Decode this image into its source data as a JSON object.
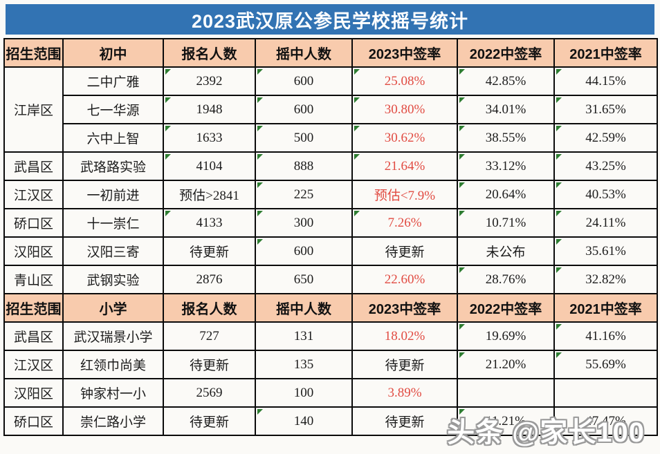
{
  "page": {
    "title": "2023武汉原公参民学校摇号统计",
    "watermark": "头条 @家长100"
  },
  "colors": {
    "title_bg": "#3273b3",
    "header_bg": "#f8cbad",
    "red": "#e14b42",
    "marker_green": "#2e7d32",
    "border": "#0a0a0a"
  },
  "table": {
    "sections": [
      {
        "header": [
          "招生范围",
          "初中",
          "报名人数",
          "摇中人数",
          "2023中签率",
          "2022中签率",
          "2021中签率"
        ],
        "groups": [
          {
            "district": "江岸区",
            "rows": [
              {
                "school": "二中广雅",
                "values": [
                  {
                    "text": "2392",
                    "mark": true
                  },
                  {
                    "text": "600",
                    "mark": true
                  },
                  {
                    "text": "25.08%",
                    "mark": true,
                    "red": true
                  },
                  {
                    "text": "42.85%",
                    "mark": true
                  },
                  {
                    "text": "44.15%",
                    "mark": true
                  }
                ]
              },
              {
                "school": "七一华源",
                "values": [
                  {
                    "text": "1948",
                    "mark": true
                  },
                  {
                    "text": "600",
                    "mark": true
                  },
                  {
                    "text": "30.80%",
                    "mark": true,
                    "red": true
                  },
                  {
                    "text": "34.01%",
                    "mark": true
                  },
                  {
                    "text": "31.65%",
                    "mark": true
                  }
                ]
              },
              {
                "school": "六中上智",
                "values": [
                  {
                    "text": "1633",
                    "mark": true
                  },
                  {
                    "text": "500",
                    "mark": true
                  },
                  {
                    "text": "30.62%",
                    "mark": true,
                    "red": true
                  },
                  {
                    "text": "38.55%",
                    "mark": true
                  },
                  {
                    "text": "42.59%",
                    "mark": true
                  }
                ]
              }
            ]
          },
          {
            "district": "武昌区",
            "rows": [
              {
                "school": "武珞路实验",
                "values": [
                  {
                    "text": "4104",
                    "mark": true
                  },
                  {
                    "text": "888",
                    "mark": true
                  },
                  {
                    "text": "21.64%",
                    "mark": true,
                    "red": true
                  },
                  {
                    "text": "33.12%",
                    "mark": true
                  },
                  {
                    "text": "43.25%",
                    "mark": true
                  }
                ]
              }
            ]
          },
          {
            "district": "江汉区",
            "rows": [
              {
                "school": "一初前进",
                "values": [
                  {
                    "text": "预估>2841"
                  },
                  {
                    "text": "225",
                    "mark": true
                  },
                  {
                    "text": "预估<7.9%",
                    "red": true
                  },
                  {
                    "text": "20.64%",
                    "mark": true
                  },
                  {
                    "text": "40.53%",
                    "mark": true
                  }
                ]
              }
            ]
          },
          {
            "district": "硚口区",
            "rows": [
              {
                "school": "十一崇仁",
                "values": [
                  {
                    "text": "4133",
                    "mark": true
                  },
                  {
                    "text": "300",
                    "mark": true
                  },
                  {
                    "text": "7.26%",
                    "mark": true,
                    "red": true
                  },
                  {
                    "text": "10.71%",
                    "mark": true
                  },
                  {
                    "text": "24.11%",
                    "mark": true
                  }
                ]
              }
            ]
          },
          {
            "district": "汉阳区",
            "rows": [
              {
                "school": "汉阳三寄",
                "values": [
                  {
                    "text": "待更新"
                  },
                  {
                    "text": "600",
                    "mark": true
                  },
                  {
                    "text": "待更新"
                  },
                  {
                    "text": "未公布"
                  },
                  {
                    "text": "35.61%",
                    "mark": true
                  }
                ]
              }
            ]
          },
          {
            "district": "青山区",
            "rows": [
              {
                "school": "武钢实验",
                "values": [
                  {
                    "text": "2876"
                  },
                  {
                    "text": "650"
                  },
                  {
                    "text": "22.60%",
                    "red": true
                  },
                  {
                    "text": "28.76%",
                    "mark": true
                  },
                  {
                    "text": "32.82%",
                    "mark": true
                  }
                ]
              }
            ]
          }
        ]
      },
      {
        "header": [
          "招生范围",
          "小学",
          "报名人数",
          "摇中人数",
          "2023中签率",
          "2022中签率",
          "2021中签率"
        ],
        "groups": [
          {
            "district": "武昌区",
            "rows": [
              {
                "school": "武汉瑞景小学",
                "values": [
                  {
                    "text": "727"
                  },
                  {
                    "text": "131"
                  },
                  {
                    "text": "18.02%",
                    "red": true
                  },
                  {
                    "text": "19.69%",
                    "mark": true
                  },
                  {
                    "text": "41.16%",
                    "mark": true
                  }
                ]
              }
            ]
          },
          {
            "district": "江汉区",
            "rows": [
              {
                "school": "红领巾尚美",
                "values": [
                  {
                    "text": "待更新"
                  },
                  {
                    "text": "135"
                  },
                  {
                    "text": "待更新"
                  },
                  {
                    "text": "21.20%",
                    "mark": true
                  },
                  {
                    "text": "55.69%",
                    "mark": true
                  }
                ]
              }
            ]
          },
          {
            "district": "汉阳区",
            "rows": [
              {
                "school": "钟家村一小",
                "values": [
                  {
                    "text": "2569"
                  },
                  {
                    "text": "100"
                  },
                  {
                    "text": "3.89%",
                    "red": true
                  },
                  {
                    "text": ""
                  },
                  {
                    "text": ""
                  }
                ]
              }
            ]
          },
          {
            "district": "硚口区",
            "rows": [
              {
                "school": "崇仁路小学",
                "values": [
                  {
                    "text": "待更新"
                  },
                  {
                    "text": "140",
                    "mark": true
                  },
                  {
                    "text": "待更新"
                  },
                  {
                    "text": "11.21%",
                    "mark": true
                  },
                  {
                    "text": "47.47%"
                  }
                ]
              }
            ]
          }
        ]
      }
    ]
  }
}
